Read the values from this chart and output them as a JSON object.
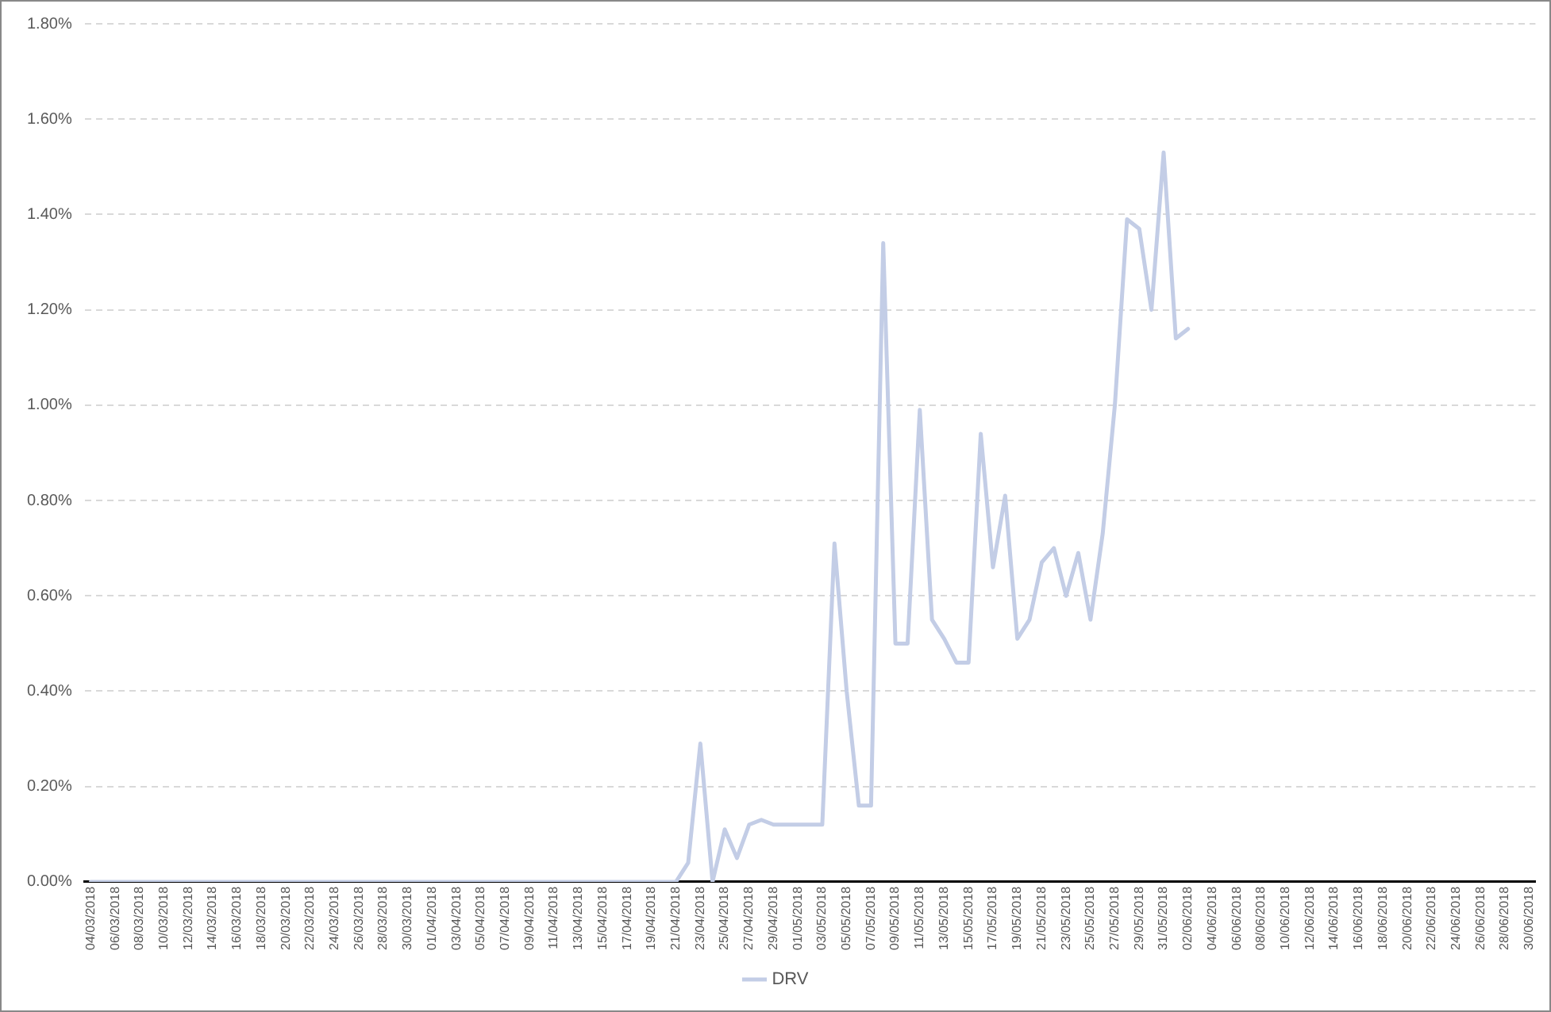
{
  "chart_data": {
    "type": "line",
    "categories": [
      "04/03/2018",
      null,
      "06/03/2018",
      null,
      "08/03/2018",
      null,
      "10/03/2018",
      null,
      "12/03/2018",
      null,
      "14/03/2018",
      null,
      "16/03/2018",
      null,
      "18/03/2018",
      null,
      "20/03/2018",
      null,
      "22/03/2018",
      null,
      "24/03/2018",
      null,
      "26/03/2018",
      null,
      "28/03/2018",
      null,
      "30/03/2018",
      null,
      "01/04/2018",
      null,
      "03/04/2018",
      null,
      "05/04/2018",
      null,
      "07/04/2018",
      null,
      "09/04/2018",
      null,
      "11/04/2018",
      null,
      "13/04/2018",
      null,
      "15/04/2018",
      null,
      "17/04/2018",
      null,
      "19/04/2018",
      null,
      "21/04/2018",
      null,
      "23/04/2018",
      null,
      "25/04/2018",
      null,
      "27/04/2018",
      null,
      "29/04/2018",
      null,
      "01/05/2018",
      null,
      "03/05/2018",
      null,
      "05/05/2018",
      null,
      "07/05/2018",
      null,
      "09/05/2018",
      null,
      "11/05/2018",
      null,
      "13/05/2018",
      null,
      "15/05/2018",
      null,
      "17/05/2018",
      null,
      "19/05/2018",
      null,
      "21/05/2018",
      null,
      "23/05/2018",
      null,
      "25/05/2018",
      null,
      "27/05/2018",
      null,
      "29/05/2018",
      null,
      "31/05/2018",
      null,
      "02/06/2018",
      null,
      "04/06/2018",
      null,
      "06/06/2018",
      null,
      "08/06/2018",
      null,
      "10/06/2018",
      null,
      "12/06/2018",
      null,
      "14/06/2018",
      null,
      "16/06/2018",
      null,
      "18/06/2018",
      null,
      "20/06/2018",
      null,
      "22/06/2018",
      null,
      "24/06/2018",
      null,
      "26/06/2018",
      null,
      "28/06/2018",
      null,
      "30/06/2018"
    ],
    "series": [
      {
        "name": "DRV",
        "color": "#c3cde6",
        "values": [
          0,
          0,
          0,
          0,
          0,
          0,
          0,
          0,
          0,
          0,
          0,
          0,
          0,
          0,
          0,
          0,
          0,
          0,
          0,
          0,
          0,
          0,
          0,
          0,
          0,
          0,
          0,
          0,
          0,
          0,
          0,
          0,
          0,
          0,
          0,
          0,
          0,
          0,
          0,
          0,
          0,
          0,
          0,
          0,
          0,
          0,
          0,
          0,
          0,
          0.04,
          0.29,
          0,
          0.11,
          0.05,
          0.12,
          0.13,
          0.12,
          0.12,
          0.12,
          0.12,
          0.12,
          0.71,
          0.4,
          0.16,
          0.16,
          1.34,
          0.5,
          0.5,
          0.99,
          0.55,
          0.51,
          0.46,
          0.46,
          0.94,
          0.66,
          0.81,
          0.51,
          0.55,
          0.67,
          0.7,
          0.6,
          0.69,
          0.55,
          0.73,
          1.0,
          1.39,
          1.37,
          1.2,
          1.53,
          1.14,
          1.16,
          null,
          null,
          null,
          null,
          null,
          null,
          null,
          null,
          null,
          null,
          null,
          null,
          null,
          null,
          null,
          null,
          null,
          null,
          null,
          null,
          null,
          null,
          null,
          null,
          null,
          null,
          null,
          null
        ]
      }
    ],
    "ylim": [
      0,
      1.8
    ],
    "yticks": [
      {
        "value": 0,
        "label": "0.00%"
      },
      {
        "value": 0.2,
        "label": "0.20%"
      },
      {
        "value": 0.4,
        "label": "0.40%"
      },
      {
        "value": 0.6,
        "label": "0.60%"
      },
      {
        "value": 0.8,
        "label": "0.80%"
      },
      {
        "value": 1.0,
        "label": "1.00%"
      },
      {
        "value": 1.2,
        "label": "1.20%"
      },
      {
        "value": 1.4,
        "label": "1.40%"
      },
      {
        "value": 1.6,
        "label": "1.60%"
      },
      {
        "value": 1.8,
        "label": "1.80%"
      }
    ],
    "grid": "y",
    "legend": "bottom",
    "marker": "none",
    "line_style": "solid"
  }
}
